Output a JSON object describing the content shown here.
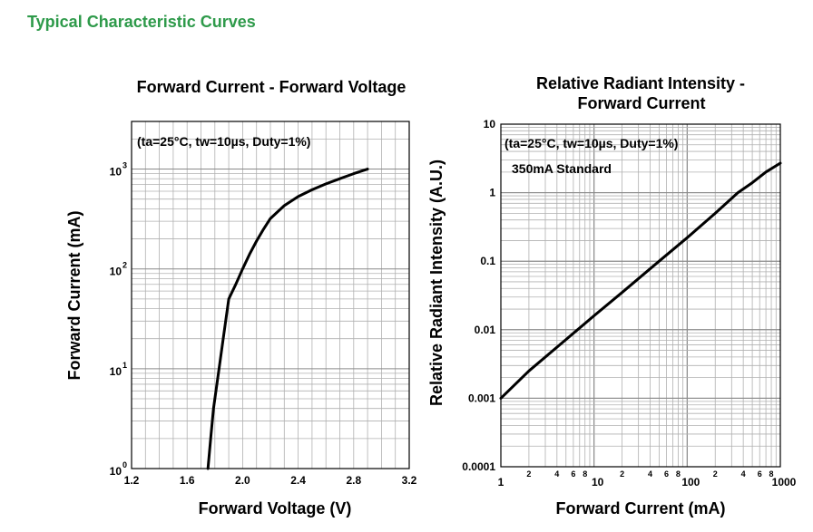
{
  "page": {
    "heading": "Typical Characteristic Curves",
    "heading_color": "#2e9a4a"
  },
  "chart_data": [
    {
      "type": "line",
      "title": "Forward Current - Forward Voltage",
      "xlabel": "Forward Voltage (V)",
      "ylabel": "Forward Current (mA)",
      "xlim": [
        1.2,
        3.2
      ],
      "ylim": [
        1,
        3000
      ],
      "yscale": "log",
      "grid": true,
      "x_ticks": [
        "1.2",
        "1.6",
        "2.0",
        "2.4",
        "2.8",
        "3.2"
      ],
      "y_ticks": [
        {
          "value": 1,
          "base": "10",
          "exp": "0"
        },
        {
          "value": 10,
          "base": "10",
          "exp": "1"
        },
        {
          "value": 100,
          "base": "10",
          "exp": "2"
        },
        {
          "value": 1000,
          "base": "10",
          "exp": "3"
        }
      ],
      "annotations": [
        "(ta=25°C, tw=10µs, Duty=1%)"
      ],
      "line_color": "#000000",
      "x": [
        1.75,
        1.77,
        1.79,
        1.8,
        1.83,
        1.86,
        1.9,
        1.95,
        2.0,
        2.05,
        2.1,
        2.15,
        2.2,
        2.3,
        2.4,
        2.5,
        2.6,
        2.7,
        2.8,
        2.9
      ],
      "y": [
        1,
        2,
        4,
        5,
        10,
        20,
        50,
        70,
        100,
        140,
        190,
        250,
        320,
        430,
        530,
        620,
        710,
        800,
        900,
        1000
      ]
    },
    {
      "type": "line",
      "title": "Relative Radiant Intensity - Forward Current",
      "title_lines": [
        "Relative Radiant Intensity -",
        "Forward Current"
      ],
      "xlabel": "Forward Current (mA)",
      "ylabel": "Relative Radiant Intensity (A.U.)",
      "xlim": [
        1,
        1000
      ],
      "ylim": [
        0.0001,
        10
      ],
      "xscale": "log",
      "yscale": "log",
      "grid": true,
      "x_major_ticks": [
        "1",
        "10",
        "100",
        "1000"
      ],
      "x_minor_labels": [
        "2",
        "4",
        "6",
        "8"
      ],
      "y_ticks": [
        "0.0001",
        "0.001",
        "0.01",
        "0.1",
        "1",
        "10"
      ],
      "annotations": [
        "(ta=25°C, tw=10µs, Duty=1%)",
        "350mA Standard"
      ],
      "line_color": "#000000",
      "x": [
        1,
        2,
        5,
        10,
        20,
        50,
        100,
        200,
        350,
        500,
        700,
        1000
      ],
      "y": [
        0.001,
        0.0025,
        0.0072,
        0.016,
        0.035,
        0.1,
        0.22,
        0.5,
        1.0,
        1.4,
        2.0,
        2.7
      ]
    }
  ]
}
